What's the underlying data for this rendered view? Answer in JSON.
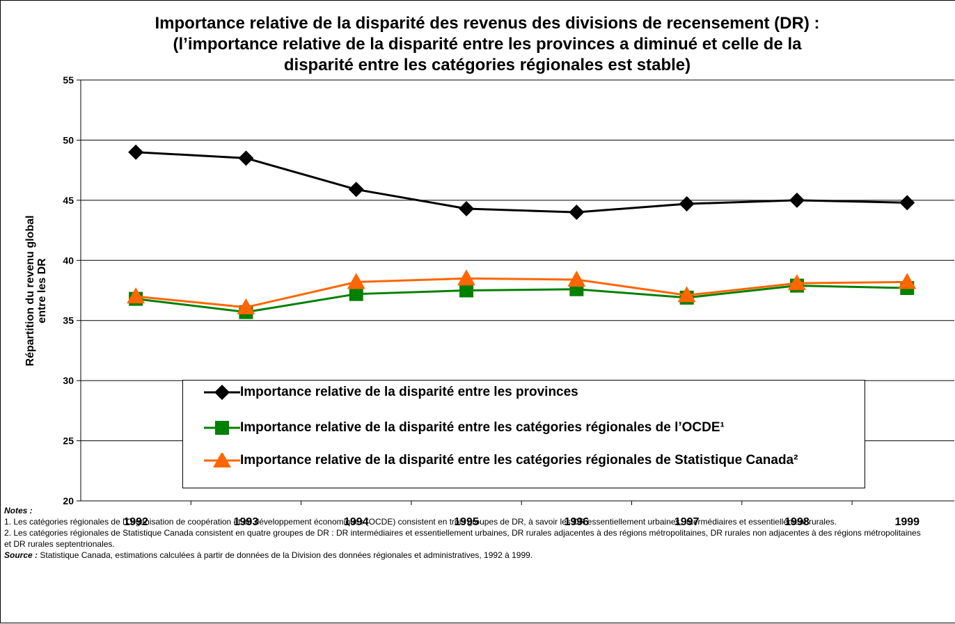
{
  "chart_data": {
    "type": "line",
    "title": [
      "Importance relative de la disparité des revenus des divisions de recensement (DR) :",
      "(l’importance relative de la disparité entre les provinces a diminué et celle de la",
      "disparité entre les catégories régionales est stable)"
    ],
    "ylabel": [
      "Répartition du revenu global",
      "entre les DR"
    ],
    "categories": [
      "1992",
      "1993",
      "1994",
      "1995",
      "1996",
      "1997",
      "1998",
      "1999"
    ],
    "series": [
      {
        "name": "Importance relative de la disparité entre les provinces",
        "color": "#000000",
        "marker": "diamond",
        "values": [
          49.0,
          48.5,
          45.9,
          44.3,
          44.0,
          44.7,
          45.0,
          44.8
        ]
      },
      {
        "name": "Importance relative de la disparité entre les catégories régionales de l’OCDE¹",
        "color": "#008000",
        "marker": "square",
        "values": [
          36.8,
          35.7,
          37.2,
          37.5,
          37.6,
          36.9,
          37.9,
          37.7
        ]
      },
      {
        "name": "Importance relative de la disparité entre les catégories régionales de Statistique Canada²",
        "color": "#ff6600",
        "marker": "triangle",
        "values": [
          37.0,
          36.1,
          38.2,
          38.5,
          38.4,
          37.1,
          38.1,
          38.2
        ]
      }
    ],
    "ylim": [
      20,
      55
    ],
    "yticks": [
      20,
      25,
      30,
      35,
      40,
      45,
      50,
      55
    ],
    "grid": true
  },
  "notes": {
    "heading": "Notes :",
    "items": [
      "1.  Les catégories régionales de l’Organisation de coopération et de développement économiques (OCDE) consistent en trois groupes de DR, à savoir les DR essentiellement urbaines, intermédiaires et essentiellement rurales.",
      "2.  Les catégories régionales de Statistique Canada consistent en quatre groupes de DR : DR intermédiaires et essentiellement urbaines, DR rurales adjacentes à des régions métropolitaines, DR rurales non adjacentes à des régions métropolitaines et DR rurales septentrionales."
    ],
    "source_label": "Source :",
    "source_text": "Statistique Canada, estimations calculées à partir de données de la Division des données régionales et administratives, 1992 à 1999."
  }
}
